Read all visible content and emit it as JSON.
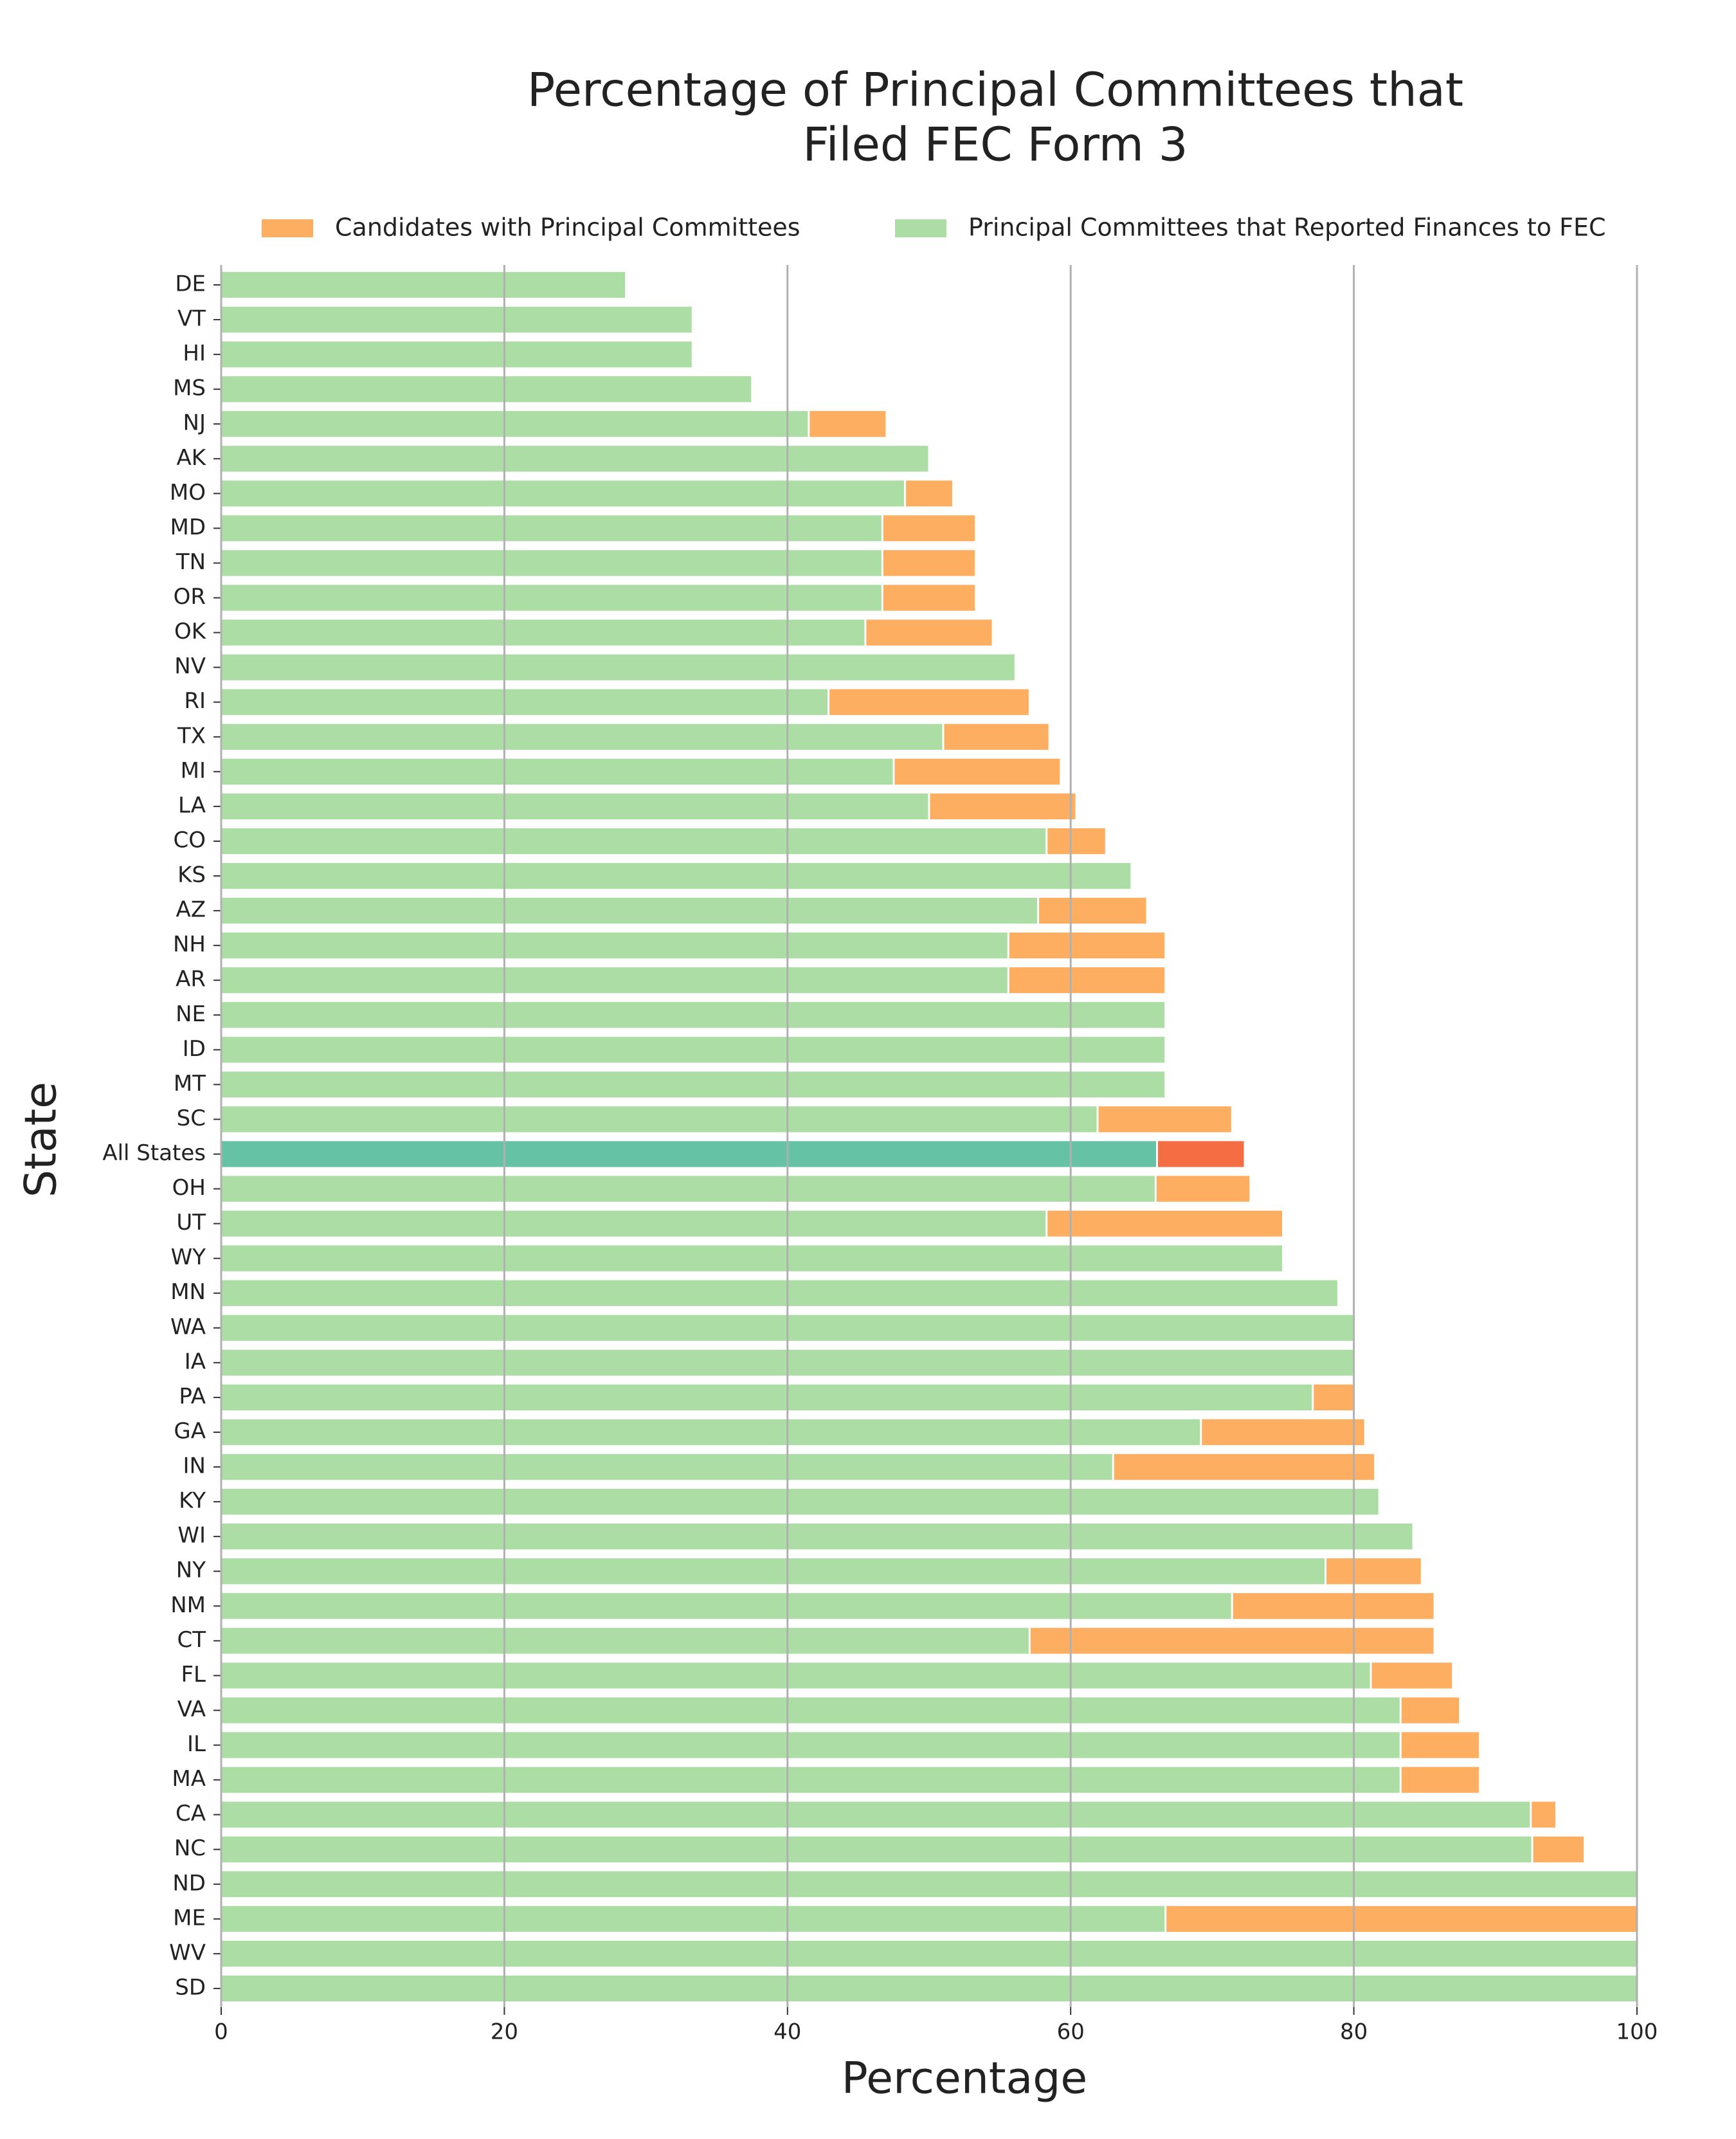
{
  "chart_data": {
    "type": "bar",
    "orientation": "horizontal",
    "title": "Percentage of Principal Committees that",
    "title_line2": "Filed FEC Form 3",
    "xlabel": "Percentage",
    "ylabel": "State",
    "categories": [
      "DE",
      "VT",
      "HI",
      "MS",
      "NJ",
      "AK",
      "MO",
      "MD",
      "TN",
      "OR",
      "OK",
      "NV",
      "RI",
      "TX",
      "MI",
      "LA",
      "CO",
      "KS",
      "AZ",
      "NH",
      "AR",
      "NE",
      "ID",
      "MT",
      "SC",
      "All States",
      "OH",
      "UT",
      "WY",
      "MN",
      "WA",
      "IA",
      "PA",
      "GA",
      "IN",
      "KY",
      "WI",
      "NY",
      "NM",
      "CT",
      "FL",
      "VA",
      "IL",
      "MA",
      "CA",
      "NC",
      "ND",
      "ME",
      "WV",
      "SD"
    ],
    "highlight_category": "All States",
    "series": [
      {
        "name": "Candidates with Principal Committees",
        "color": "#fdae61",
        "highlight_color": "#f46d43",
        "values": [
          28.6,
          33.3,
          33.3,
          37.5,
          47.0,
          50.0,
          51.7,
          53.3,
          53.3,
          53.3,
          54.5,
          56.1,
          57.1,
          58.5,
          59.3,
          60.4,
          62.5,
          64.3,
          65.4,
          66.7,
          66.7,
          66.7,
          66.7,
          66.7,
          71.4,
          72.3,
          72.7,
          75.0,
          75.0,
          78.9,
          80.0,
          80.0,
          80.0,
          80.8,
          81.5,
          81.8,
          84.2,
          84.8,
          85.7,
          85.7,
          87.0,
          87.5,
          88.9,
          88.9,
          94.3,
          96.3,
          100,
          100,
          100,
          100
        ]
      },
      {
        "name": "Principal Committees that Reported Finances to FEC",
        "color": "#abdda4",
        "highlight_color": "#66c2a5",
        "values": [
          28.6,
          33.3,
          33.3,
          37.5,
          41.5,
          50.0,
          48.3,
          46.7,
          46.7,
          46.7,
          45.5,
          56.1,
          42.9,
          51.0,
          47.5,
          50.0,
          58.3,
          64.3,
          57.7,
          55.6,
          55.6,
          66.7,
          66.7,
          66.7,
          61.9,
          66.1,
          66.0,
          58.3,
          75.0,
          78.9,
          80.0,
          80.0,
          77.1,
          69.2,
          63.0,
          81.8,
          84.2,
          78.0,
          71.4,
          57.1,
          81.2,
          83.3,
          83.3,
          83.3,
          92.5,
          92.6,
          100,
          66.7,
          100,
          100
        ]
      }
    ],
    "xlim": [
      0,
      100
    ],
    "xticks": [
      0,
      20,
      40,
      60,
      80,
      100
    ],
    "grid": true,
    "legend": "top"
  }
}
